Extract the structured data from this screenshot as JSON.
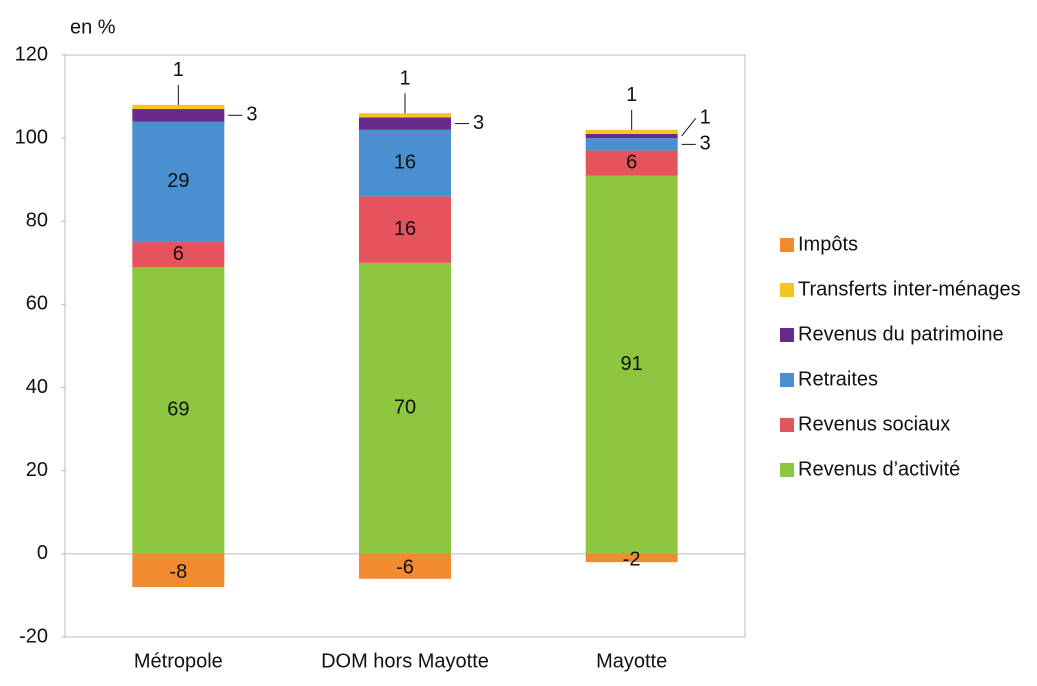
{
  "chart_data": {
    "type": "stacked_bar",
    "y_label": "en %",
    "categories": [
      "Métropole",
      "DOM hors Mayotte",
      "Mayotte"
    ],
    "series": [
      {
        "name": "Revenus d’activité",
        "color": "#8dc63f",
        "values": [
          69,
          70,
          91
        ]
      },
      {
        "name": "Revenus sociaux",
        "color": "#e5545c",
        "values": [
          6,
          16,
          6
        ]
      },
      {
        "name": "Retraites",
        "color": "#4a8fd0",
        "values": [
          29,
          16,
          3
        ]
      },
      {
        "name": "Revenus du patrimoine",
        "color": "#6a2a8c",
        "values": [
          3,
          3,
          1
        ]
      },
      {
        "name": "Transferts inter-ménages",
        "color": "#f7c51f",
        "values": [
          1,
          1,
          1
        ]
      },
      {
        "name": "Impôts",
        "color": "#f28a30",
        "values": [
          -8,
          -6,
          -2
        ]
      }
    ],
    "ylim": [
      -20,
      120
    ],
    "yticks": [
      -20,
      0,
      20,
      40,
      60,
      80,
      100,
      120
    ],
    "grid": false,
    "legend": "right"
  }
}
